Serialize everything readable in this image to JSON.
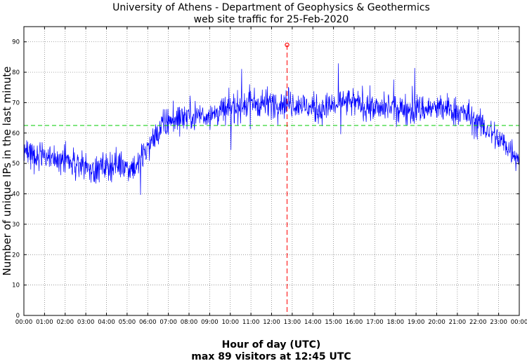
{
  "chart_data": {
    "type": "line",
    "title": "University of Athens - Department of Geophysics & Geothermics",
    "subtitle": "web site traffic for 25-Feb-2020",
    "xlabel": "Hour of day (UTC)",
    "ylabel": "Number of unique IPs in the last minute",
    "footer": "max 89 visitors at 12:45 UTC",
    "xlim": [
      0,
      24
    ],
    "ylim": [
      0,
      95
    ],
    "x_ticks": [
      "00:00",
      "01:00",
      "02:00",
      "03:00",
      "04:00",
      "05:00",
      "06:00",
      "07:00",
      "08:00",
      "09:00",
      "10:00",
      "11:00",
      "12:00",
      "13:00",
      "14:00",
      "15:00",
      "16:00",
      "17:00",
      "18:00",
      "19:00",
      "20:00",
      "21:00",
      "22:00",
      "23:00",
      "00:00"
    ],
    "y_ticks": [
      "0",
      "10",
      "20",
      "30",
      "40",
      "50",
      "60",
      "70",
      "80",
      "90"
    ],
    "grid": true,
    "series": [
      {
        "color": "#0000ff",
        "x": [
          0,
          0.5,
          1,
          1.5,
          2,
          2.5,
          3,
          3.5,
          4,
          4.5,
          5,
          5.5,
          6,
          6.5,
          7,
          7.5,
          8,
          8.5,
          9,
          9.5,
          10,
          10.5,
          11,
          11.5,
          12,
          12.5,
          13,
          13.5,
          14,
          14.5,
          15,
          15.5,
          16,
          16.5,
          17,
          17.5,
          18,
          18.5,
          19,
          19.5,
          20,
          20.5,
          21,
          21.5,
          22,
          22.5,
          23,
          23.5,
          24
        ],
        "y": [
          55,
          53,
          52,
          51,
          51,
          50,
          49,
          48,
          49,
          50,
          49,
          49,
          55,
          60,
          64,
          65,
          66,
          66,
          66,
          67,
          68,
          69,
          70,
          70,
          70,
          70,
          70,
          69,
          68,
          68,
          69,
          70,
          70,
          69,
          68,
          68,
          68,
          68,
          68,
          68,
          68,
          68,
          67,
          66,
          63,
          61,
          58,
          55,
          52
        ]
      }
    ],
    "mean_line": {
      "y": 62.5,
      "color": "#00cc00"
    },
    "peak": {
      "x": 12.75,
      "y": 89,
      "color": "#ff0000"
    }
  }
}
